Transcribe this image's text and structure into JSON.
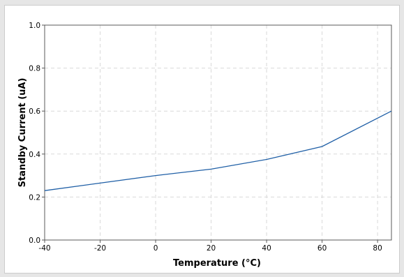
{
  "chart_data": {
    "type": "line",
    "title": "",
    "xlabel": "Temperature (°C)",
    "ylabel": "Standby Current (uA)",
    "xlim": [
      -40,
      85
    ],
    "ylim": [
      0.0,
      1.0
    ],
    "x_ticks": [
      -40,
      -20,
      0,
      20,
      40,
      60,
      80
    ],
    "y_ticks": [
      0.0,
      0.2,
      0.4,
      0.6,
      0.8,
      1.0
    ],
    "x_tick_labels": [
      "-40",
      "-20",
      "0",
      "20",
      "40",
      "60",
      "80"
    ],
    "y_tick_labels": [
      "0.0",
      "0.2",
      "0.4",
      "0.6",
      "0.8",
      "1.0"
    ],
    "grid": true,
    "series": [
      {
        "x": [
          -40,
          -20,
          0,
          20,
          40,
          60,
          85
        ],
        "y": [
          0.23,
          0.265,
          0.3,
          0.33,
          0.375,
          0.435,
          0.6
        ]
      }
    ],
    "colors": {
      "line": "#1f5fa6",
      "background": "#e6e6e6",
      "plot_area": "#ffffff",
      "grid": "#d9d9d9",
      "axis": "#595959"
    }
  }
}
